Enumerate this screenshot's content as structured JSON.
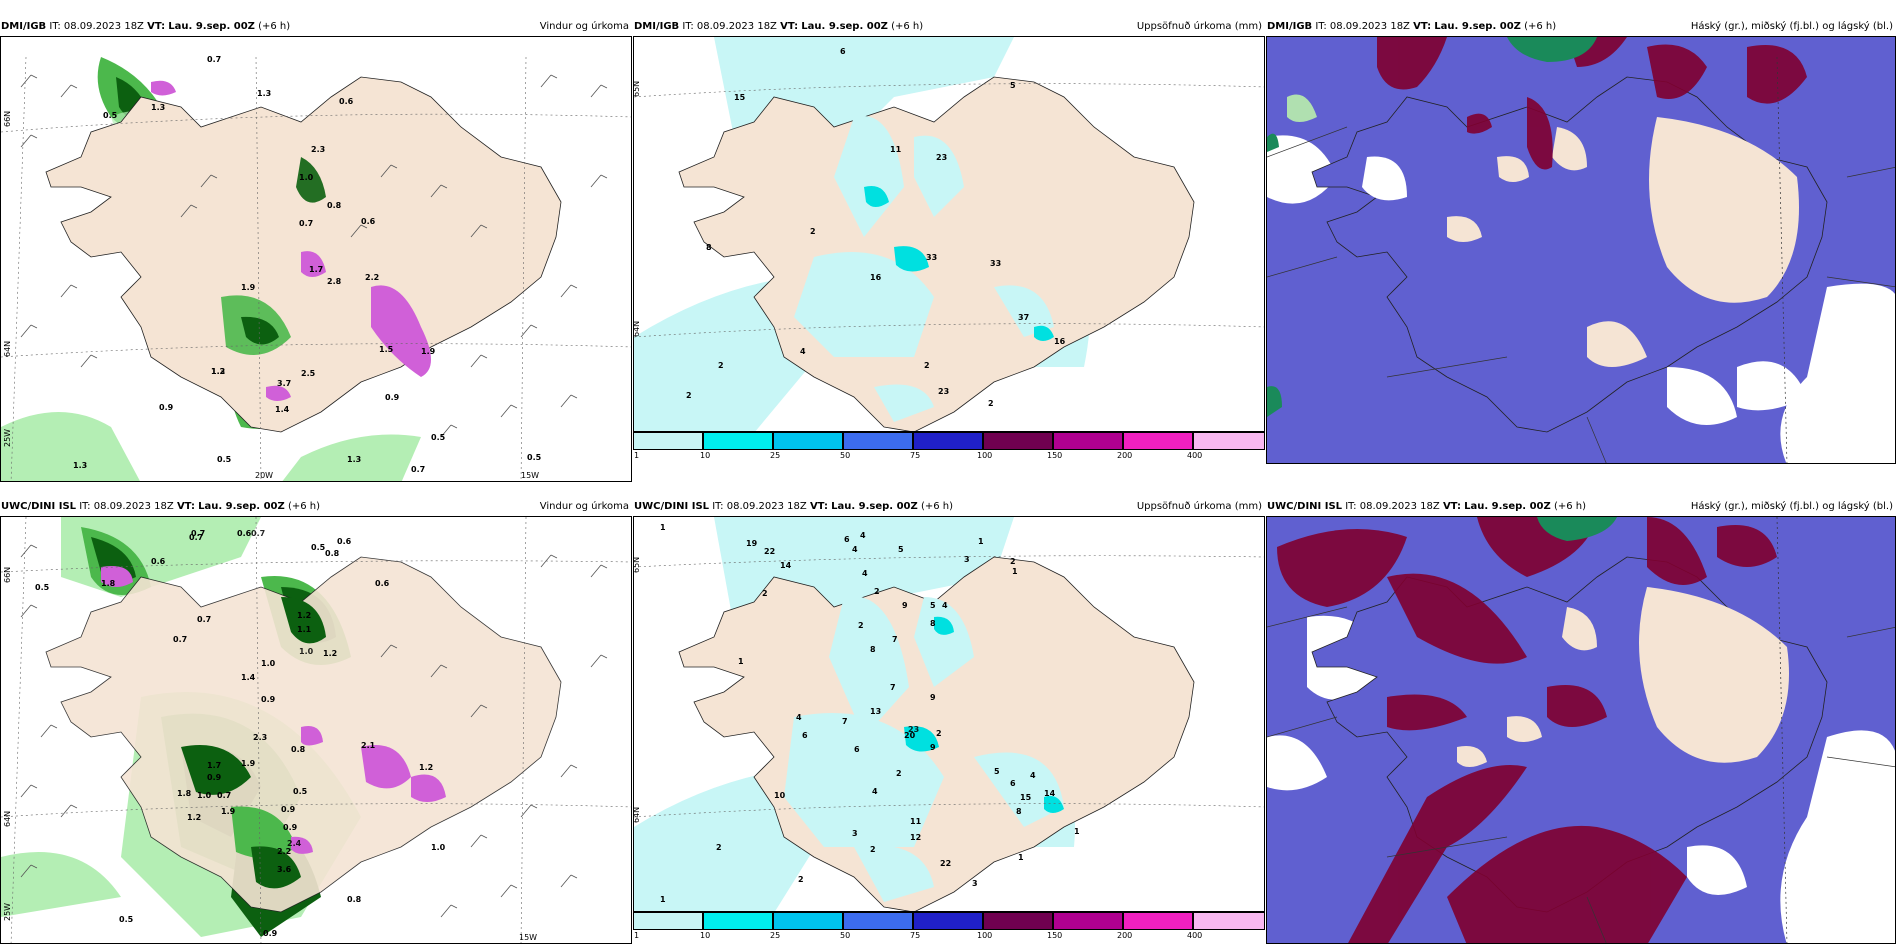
{
  "panels": {
    "p1": {
      "model": "DMI/IGB",
      "it_label": "IT:",
      "it": "08.09.2023 18Z",
      "vt_label": "VT:",
      "vt": "Lau. 9.sep. 00Z",
      "lead": "(+6 h)",
      "title": "Vindur og úrkoma",
      "lat_labels": [
        "66N",
        "64N",
        "25W"
      ],
      "lon_labels": [
        "20W",
        "15W"
      ],
      "values": [
        "0.7",
        "1.3",
        "0.6",
        "0.5",
        "1.3",
        "2.3",
        "1.0",
        "0.8",
        "0.7",
        "0.6",
        "1.9",
        "1.7",
        "2.8",
        "2.2",
        "1.5",
        "1.9",
        "1.2",
        "3.7",
        "0.9",
        "2.5",
        "1.4",
        "0.9",
        "0.5",
        "0.5",
        "0.7",
        "1.3",
        "0.5",
        "1.3",
        "1.3"
      ]
    },
    "p2": {
      "model": "DMI/IGB",
      "it_label": "IT:",
      "it": "08.09.2023 18Z",
      "vt_label": "VT:",
      "vt": "Lau. 9.sep. 00Z",
      "lead": "(+6 h)",
      "title": "Uppsöfnuð úrkoma (mm)",
      "lat_labels": [
        "65N",
        "64N"
      ],
      "values": [
        "6",
        "15",
        "5",
        "11",
        "23",
        "8",
        "33",
        "33",
        "16",
        "37",
        "2",
        "4",
        "2",
        "2",
        "2",
        "2",
        "23",
        "16"
      ]
    },
    "p3": {
      "model": "DMI/IGB",
      "it_label": "IT:",
      "it": "08.09.2023 18Z",
      "vt_label": "VT:",
      "vt": "Lau. 9.sep. 00Z",
      "lead": "(+6 h)",
      "title": "Háský (gr.), miðský (fj.bl.) og lágský (bl.)"
    },
    "p4": {
      "model": "UWC/DINI ISL",
      "it_label": "IT:",
      "it": "08.09.2023 18Z",
      "vt_label": "VT:",
      "vt": "Lau. 9.sep. 00Z",
      "lead": "(+6 h)",
      "title": "Vindur og úrkoma",
      "lat_labels": [
        "66N",
        "64N",
        "25W"
      ],
      "lon_labels": [
        "15W"
      ],
      "values": [
        "0.6",
        "0.7",
        "0.7",
        "0.6",
        "0.7",
        "0.5",
        "0.6",
        "0.8",
        "0.5",
        "0.7",
        "0.7",
        "0.6",
        "1.8",
        "1.2",
        "1.1",
        "1.0",
        "1.4",
        "1.2",
        "0.9",
        "0.8",
        "2.3",
        "2.1",
        "1.9",
        "0.9",
        "1.7",
        "1.0",
        "0.7",
        "1.9",
        "0.9",
        "1.2",
        "0.5",
        "1.8",
        "3.6",
        "1.0",
        "0.9",
        "0.8",
        "0.5",
        "0.9",
        "1.2",
        "2.2",
        "2.4",
        "1.0"
      ]
    },
    "p5": {
      "model": "UWC/DINI ISL",
      "it_label": "IT:",
      "it": "08.09.2023 18Z",
      "vt_label": "VT:",
      "vt": "Lau. 9.sep. 00Z",
      "lead": "(+6 h)",
      "title": "Uppsöfnuð úrkoma (mm)",
      "lat_labels": [
        "65N",
        "64N"
      ],
      "values": [
        "1",
        "6",
        "4",
        "1",
        "19",
        "22",
        "14",
        "4",
        "5",
        "3",
        "2",
        "1",
        "4",
        "2",
        "2",
        "9",
        "5",
        "4",
        "2",
        "8",
        "7",
        "8",
        "1",
        "7",
        "9",
        "4",
        "13",
        "20",
        "6",
        "2",
        "7",
        "6",
        "9",
        "2",
        "23",
        "5",
        "4",
        "6",
        "14",
        "15",
        "4",
        "8",
        "10",
        "1",
        "12",
        "3",
        "11",
        "2",
        "2",
        "1",
        "22",
        "2",
        "1",
        "3"
      ]
    },
    "p6": {
      "model": "UWC/DINI ISL",
      "it_label": "IT:",
      "it": "08.09.2023 18Z",
      "vt_label": "VT:",
      "vt": "Lau. 9.sep. 00Z",
      "lead": "(+6 h)",
      "title": "Háský (gr.), miðský (fj.bl.) og lágský (bl.)"
    }
  },
  "colorbar": {
    "ticks": [
      "1",
      "10",
      "25",
      "50",
      "75",
      "100",
      "150",
      "200",
      "400"
    ],
    "colors": [
      "#c8f6f6",
      "#00eeee",
      "#00c4ee",
      "#3c6cee",
      "#2020c8",
      "#700050",
      "#b00090",
      "#f020c0",
      "#f8b8f0"
    ]
  },
  "colors": {
    "land": "#f5e4d4",
    "sea": "#ffffff",
    "green_light": "#b4eeb4",
    "green_mid": "#4cb84c",
    "green_dark": "#0c6010",
    "magenta": "#d060d8",
    "cyan_light": "#c8f6f6",
    "cyan": "#00e0e0",
    "cloud_low": "#6060d0",
    "cloud_mid": "#800030",
    "cloud_high": "#1a8a5a"
  }
}
